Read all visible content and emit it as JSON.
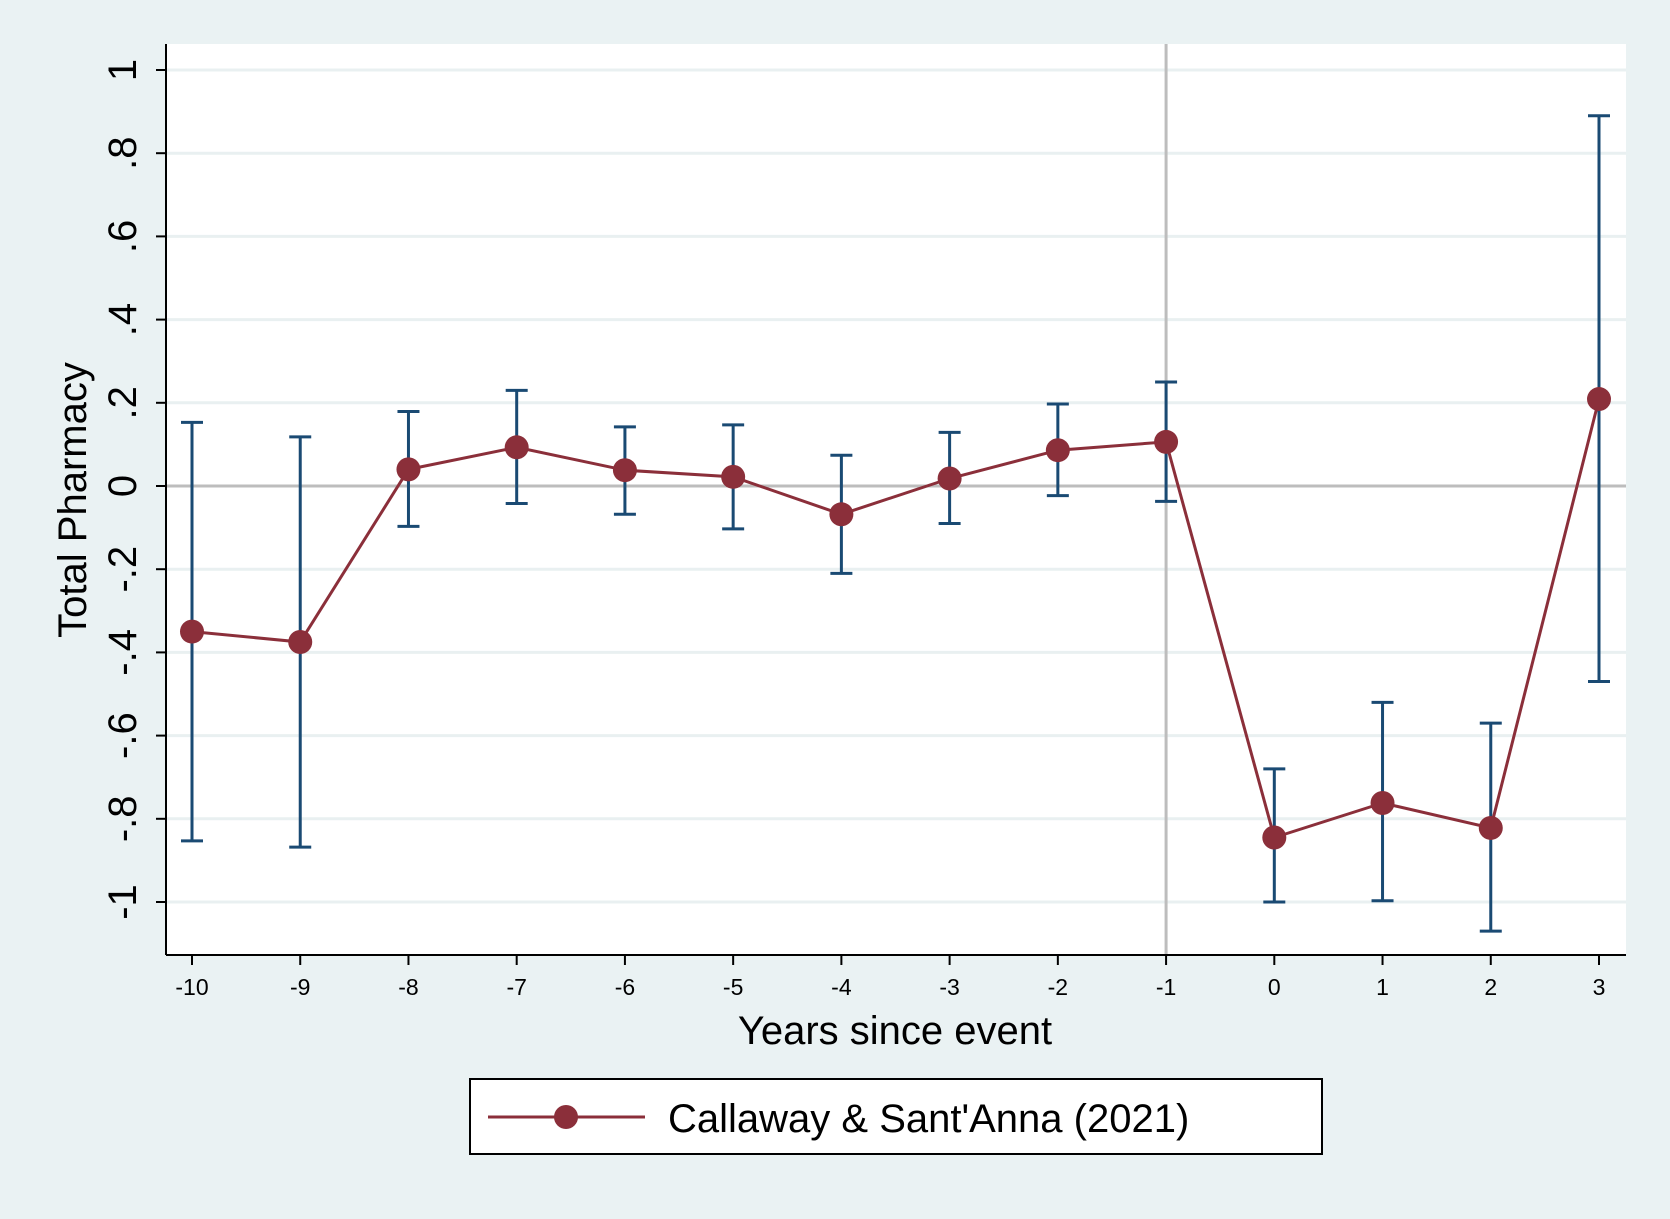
{
  "colors": {
    "background": "#eaf2f3",
    "plot_background": "#ffffff",
    "grid": "#e9f0f1",
    "series": "#8b2f3a",
    "error_bars": "#1a4a73",
    "reference_lines": "#bdbdbd",
    "axis": "#000000"
  },
  "chart_data": {
    "type": "line",
    "xlabel": "Years since event",
    "ylabel": "Total Pharmacy",
    "xlim": [
      -10,
      3
    ],
    "ylim": [
      -1,
      1
    ],
    "x_ticks": [
      "-10",
      "-9",
      "-8",
      "-7",
      "-6",
      "-5",
      "-4",
      "-3",
      "-2",
      "-1",
      "0",
      "1",
      "2",
      "3"
    ],
    "y_ticks": [
      "-1",
      "-.8",
      "-.6",
      "-.4",
      "-.2",
      "0",
      ".2",
      ".4",
      ".6",
      ".8",
      "1"
    ],
    "y_tick_values": [
      -1,
      -0.8,
      -0.6,
      -0.4,
      -0.2,
      0,
      0.2,
      0.4,
      0.6,
      0.8,
      1
    ],
    "grid": true,
    "reference_lines": {
      "vertical_x": -1,
      "horizontal_y": 0
    },
    "legend_position": "bottom",
    "series": [
      {
        "name": "Callaway & Sant'Anna (2021)",
        "x": [
          -10,
          -9,
          -8,
          -7,
          -6,
          -5,
          -4,
          -3,
          -2,
          -1,
          0,
          1,
          2,
          3
        ],
        "values": [
          -0.35,
          -0.375,
          0.04,
          0.093,
          0.038,
          0.022,
          -0.068,
          0.018,
          0.086,
          0.106,
          -0.845,
          -0.762,
          -0.822,
          0.209
        ],
        "ci_lower": [
          -0.853,
          -0.868,
          -0.097,
          -0.042,
          -0.068,
          -0.103,
          -0.21,
          -0.09,
          -0.023,
          -0.037,
          -1.0,
          -0.997,
          -1.07,
          -0.47
        ],
        "ci_upper": [
          0.153,
          0.118,
          0.179,
          0.23,
          0.142,
          0.147,
          0.074,
          0.129,
          0.197,
          0.25,
          -0.68,
          -0.52,
          -0.57,
          0.89
        ]
      }
    ]
  }
}
